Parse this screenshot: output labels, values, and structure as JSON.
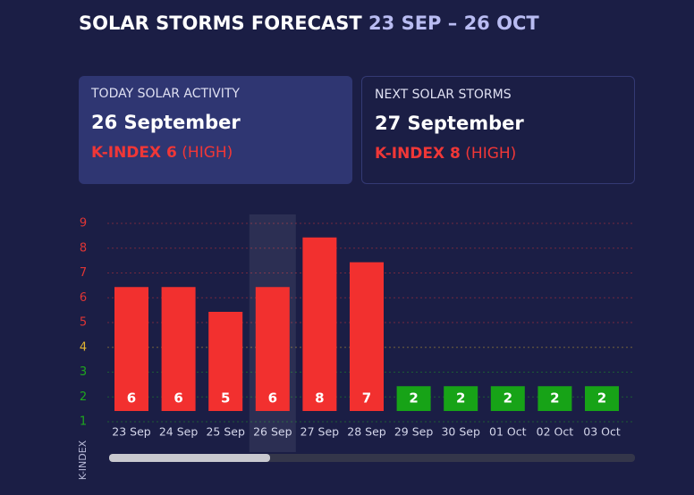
{
  "header": {
    "title": "SOLAR STORMS FORECAST",
    "range": "23 SEP – 26 OCT"
  },
  "cards": [
    {
      "label": "TODAY SOLAR ACTIVITY",
      "date": "26 September",
      "k_index": "K-INDEX 6",
      "level": "(HIGH)"
    },
    {
      "label": "NEXT SOLAR STORMS",
      "date": "27 September",
      "k_index": "K-INDEX 8",
      "level": "(HIGH)"
    }
  ],
  "chart_data": {
    "type": "bar",
    "y_label": "K-INDEX",
    "categories": [
      "23 Sep",
      "24 Sep",
      "25 Sep",
      "26 Sep",
      "27 Sep",
      "28 Sep",
      "29 Sep",
      "30 Sep",
      "01 Oct",
      "02 Oct",
      "03 Oct"
    ],
    "values": [
      6,
      6,
      5,
      6,
      8,
      7,
      2,
      2,
      2,
      2,
      2
    ],
    "colors": [
      "#f2302f",
      "#f2302f",
      "#f2302f",
      "#f2302f",
      "#f2302f",
      "#f2302f",
      "#17a317",
      "#17a317",
      "#17a317",
      "#17a317",
      "#17a317"
    ],
    "highlight_index": 3,
    "ylim": [
      1,
      9
    ],
    "yticks": [
      1,
      2,
      3,
      4,
      5,
      6,
      7,
      8,
      9
    ],
    "ytick_colors": [
      "#1ea81e",
      "#1ea81e",
      "#1ea81e",
      "#e2b531",
      "#e03535",
      "#e03535",
      "#e03535",
      "#e03535",
      "#e03535"
    ],
    "grid": true
  }
}
